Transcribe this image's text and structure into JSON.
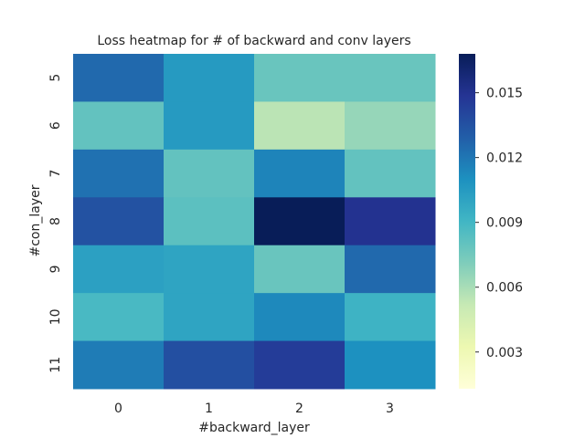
{
  "chart_data": {
    "type": "heatmap",
    "title": "Loss heatmap for # of backward and conv layers",
    "xlabel": "#backward_layer",
    "ylabel": "#con_layer",
    "x_categories": [
      "0",
      "1",
      "2",
      "3"
    ],
    "y_categories": [
      "5",
      "6",
      "7",
      "8",
      "9",
      "10",
      "11"
    ],
    "values": [
      [
        0.0125,
        0.0105,
        0.0078,
        0.0078
      ],
      [
        0.008,
        0.0105,
        0.0055,
        0.0065
      ],
      [
        0.0122,
        0.008,
        0.0115,
        0.008
      ],
      [
        0.0135,
        0.0082,
        0.0168,
        0.015
      ],
      [
        0.0102,
        0.01,
        0.0078,
        0.0125
      ],
      [
        0.0088,
        0.01,
        0.0113,
        0.0092
      ],
      [
        0.0118,
        0.0136,
        0.0145,
        0.011
      ]
    ],
    "colorbar": {
      "vmin": 0.0013,
      "vmax": 0.0168,
      "ticks": [
        0.003,
        0.006,
        0.009,
        0.012,
        0.015
      ],
      "tick_labels": [
        "0.003",
        "0.006",
        "0.009",
        "0.012",
        "0.015"
      ],
      "colormap": "YlGnBu"
    },
    "grid": false,
    "legend": "colorbar-right"
  }
}
